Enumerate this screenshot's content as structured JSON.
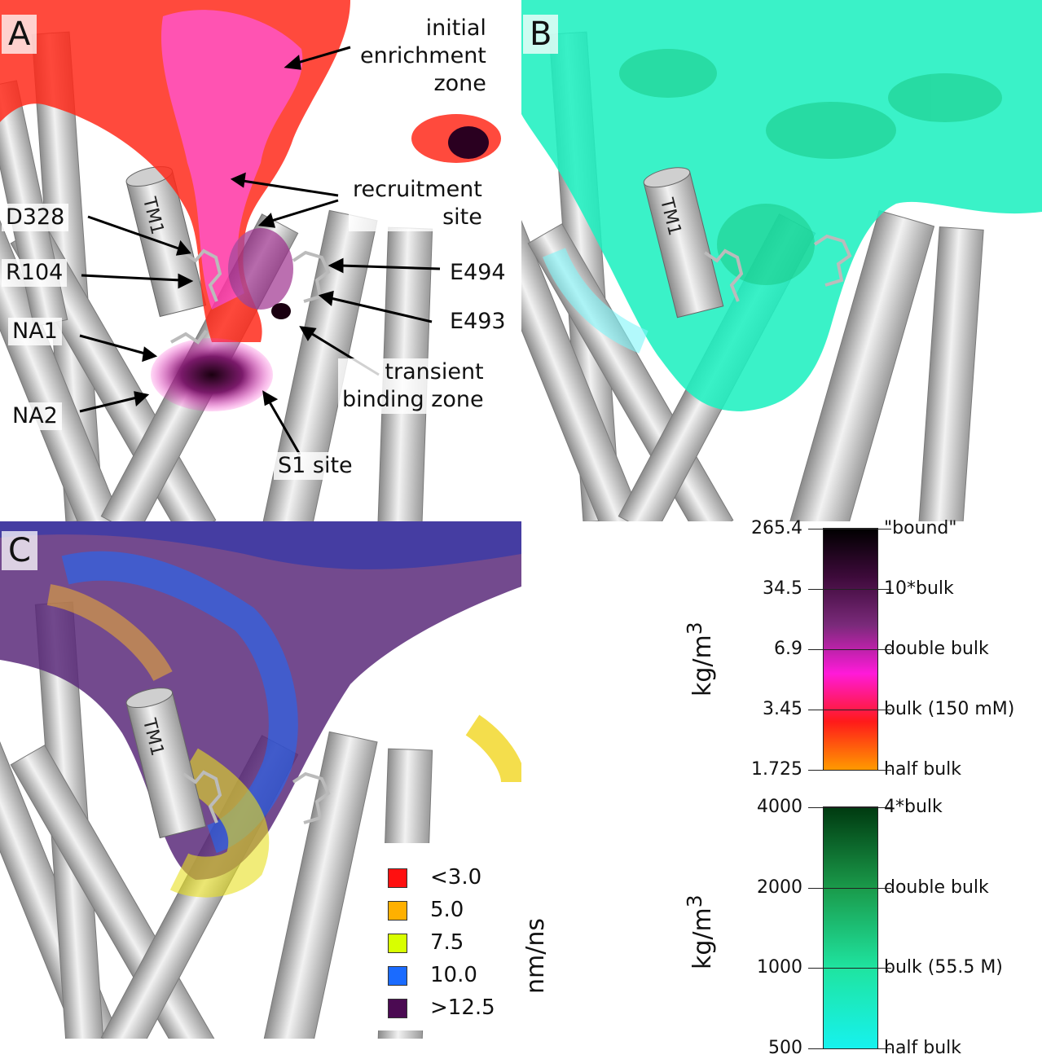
{
  "panels": {
    "a": {
      "letter": "A",
      "labels": {
        "initial_enrichment_zone": [
          "initial",
          "enrichment",
          "zone"
        ],
        "recruitment_site": [
          "recruitment",
          "site"
        ],
        "d328": "D328",
        "r104": "R104",
        "na1": "NA1",
        "na2": "NA2",
        "e494": "E494",
        "e493": "E493",
        "transient_binding_zone": [
          "transient",
          "binding zone"
        ],
        "s1_site": "S1 site",
        "tm1": "TM1"
      }
    },
    "b": {
      "letter": "B",
      "tm1": "TM1"
    },
    "c": {
      "letter": "C",
      "tm1": "TM1"
    }
  },
  "colorbar_sodium": {
    "unit": "kg/m",
    "unit_sup": "3",
    "ticks_left": [
      "265.4",
      "34.5",
      "6.9",
      "3.45",
      "1.725"
    ],
    "ticks_right": [
      "\"bound\"",
      "10*bulk",
      "double bulk",
      "bulk (150 mM)",
      "half bulk"
    ],
    "colors": [
      "#000000",
      "#3d0a3a",
      "#7a2a7a",
      "#ff1ad9",
      "#ff1a1a",
      "#ff9a00"
    ]
  },
  "colorbar_water": {
    "unit": "kg/m",
    "unit_sup": "3",
    "ticks_left": [
      "4000",
      "2000",
      "1000",
      "500"
    ],
    "ticks_right": [
      "4*bulk",
      "double bulk",
      "bulk (55.5 M)",
      "half bulk"
    ],
    "colors": [
      "#003a10",
      "#1a9a4a",
      "#1fe4a0",
      "#16f2ee"
    ]
  },
  "velocity_legend": {
    "unit": "nm/ns",
    "items": [
      {
        "label": "<3.0",
        "color": "#ff1010"
      },
      {
        "label": "5.0",
        "color": "#ffb000"
      },
      {
        "label": "7.5",
        "color": "#d8ff00"
      },
      {
        "label": "10.0",
        "color": "#1a6bff"
      },
      {
        "label": ">12.5",
        "color": "#4b0a52"
      }
    ]
  }
}
